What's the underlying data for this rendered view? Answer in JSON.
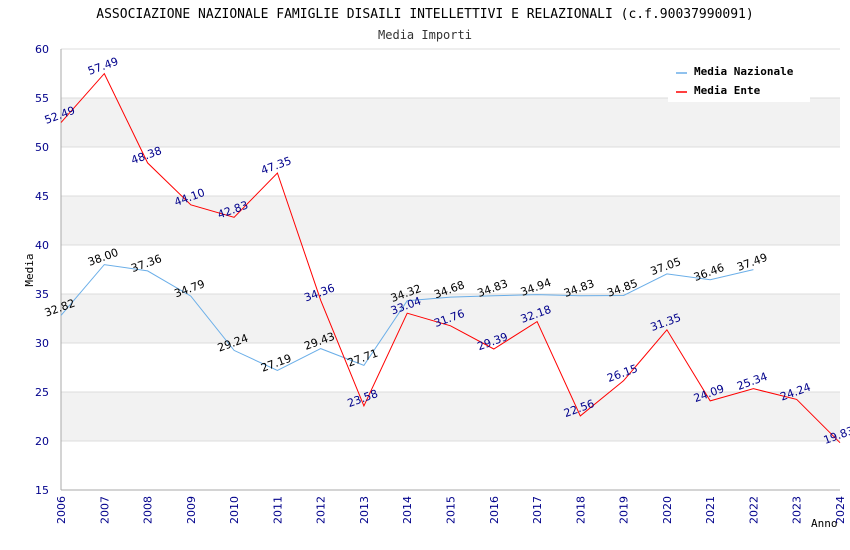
{
  "chart_data": {
    "type": "line",
    "title": "ASSOCIAZIONE NAZIONALE FAMIGLIE DISAILI INTELLETTIVI E RELAZIONALI (c.f.90037990091)",
    "subtitle": "Media Importi",
    "xlabel": "Anno",
    "ylabel": "Media",
    "ylim": [
      15,
      60
    ],
    "yticks": [
      15,
      20,
      25,
      30,
      35,
      40,
      45,
      50,
      55,
      60
    ],
    "categories": [
      "2006",
      "2007",
      "2008",
      "2009",
      "2010",
      "2011",
      "2012",
      "2013",
      "2014",
      "2015",
      "2016",
      "2017",
      "2018",
      "2019",
      "2020",
      "2021",
      "2022",
      "2023",
      "2024"
    ],
    "grid": "horizontal, alternating bands",
    "legend_position": "top-right",
    "series": [
      {
        "name": "Media Nazionale",
        "color": "#6aaee8",
        "label_color": "#000000",
        "values": [
          32.82,
          38.0,
          37.36,
          34.79,
          29.24,
          27.19,
          29.43,
          27.71,
          34.32,
          34.68,
          34.83,
          34.94,
          34.83,
          34.85,
          37.05,
          36.46,
          37.49,
          null,
          null
        ],
        "labels": [
          "32.82",
          "38.00",
          "37.36",
          "34.79",
          "29.24",
          "27.19",
          "29.43",
          "27.71",
          "34.32",
          "34.68",
          "34.83",
          "34.94",
          "34.83",
          "34.85",
          "37.05",
          "36.46",
          "37.49",
          "",
          ""
        ]
      },
      {
        "name": "Media Ente",
        "color": "#ff0000",
        "label_color": "#00008b",
        "values": [
          52.49,
          57.49,
          48.38,
          44.1,
          42.83,
          47.35,
          34.36,
          23.58,
          33.04,
          31.76,
          29.39,
          32.18,
          22.56,
          26.15,
          31.35,
          24.09,
          25.34,
          24.24,
          19.83
        ],
        "labels": [
          "52.49",
          "57.49",
          "48.38",
          "44.10",
          "42.83",
          "47.35",
          "34.36",
          "23.58",
          "33.04",
          "31.76",
          "29.39",
          "32.18",
          "22.56",
          "26.15",
          "31.35",
          "24.09",
          "25.34",
          "24.24",
          "19.83"
        ]
      }
    ]
  },
  "colors": {
    "band": "#f2f2f2",
    "gridline": "#dcdcdc",
    "axis": "#aaaaaa",
    "tick_text": "#00008b"
  }
}
